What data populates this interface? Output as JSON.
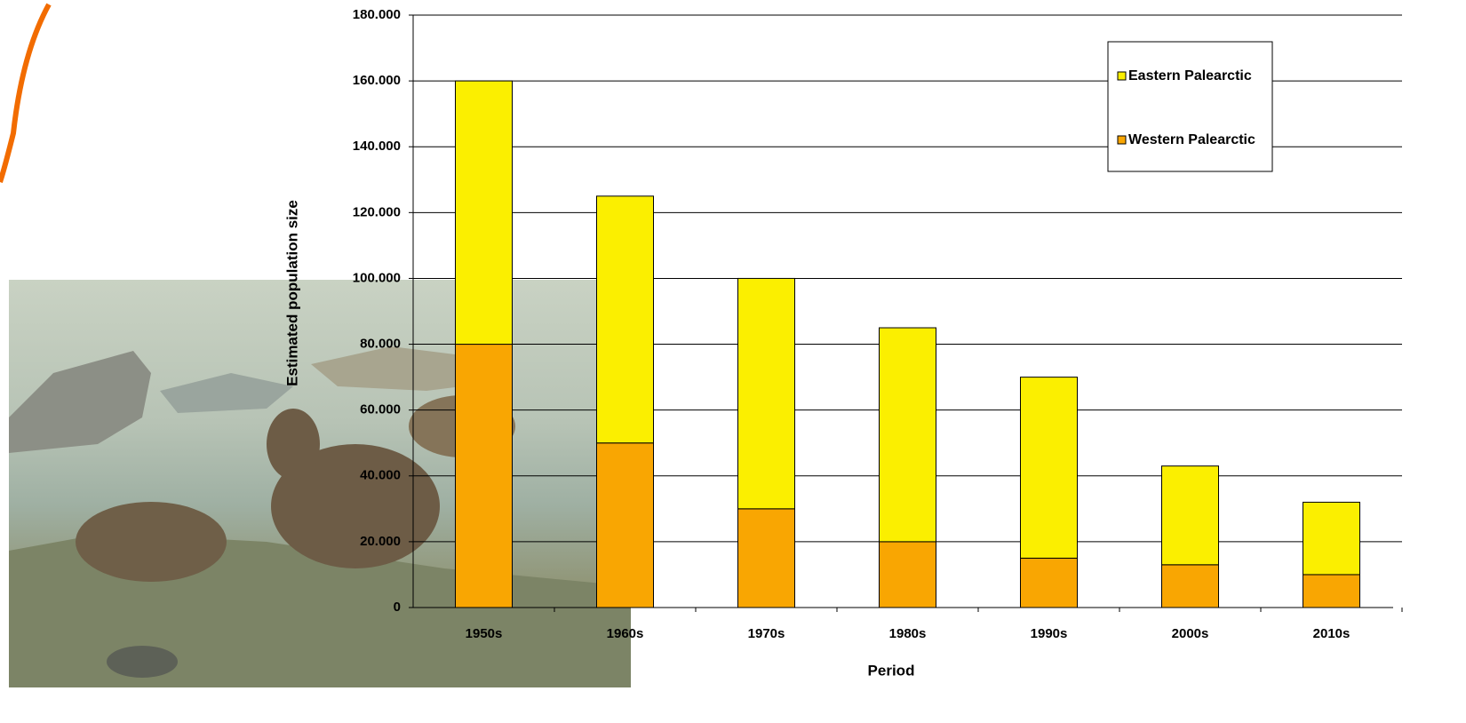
{
  "chart_data": {
    "type": "stacked_bar",
    "y_label": "Estimated population size",
    "x_label": "Period",
    "categories": [
      "1950s",
      "1960s",
      "1970s",
      "1980s",
      "1990s",
      "2000s",
      "2010s"
    ],
    "series": [
      {
        "name": "Western Palearctic",
        "color": "#f9a602",
        "values": [
          80000,
          50000,
          30000,
          20000,
          15000,
          13000,
          10000
        ]
      },
      {
        "name": "Eastern Palearctic",
        "color": "#fbef00",
        "values": [
          80000,
          75000,
          70000,
          65000,
          55000,
          30000,
          22000
        ]
      }
    ],
    "ylim": [
      0,
      180000
    ],
    "yticks": [
      0,
      {
        "value": 20000,
        "label": "20.000"
      },
      {
        "value": 40000,
        "label": "40.000"
      },
      {
        "value": 60000,
        "label": "60.000"
      },
      {
        "value": 80000,
        "label": "80.000"
      },
      {
        "value": 100000,
        "label": "100.000"
      },
      {
        "value": 120000,
        "label": "120.000"
      },
      {
        "value": 140000,
        "label": "140.000"
      },
      {
        "value": 160000,
        "label": "160.000"
      },
      {
        "value": 180000,
        "label": "180.000"
      }
    ],
    "grid": true,
    "legend": "upper right"
  }
}
